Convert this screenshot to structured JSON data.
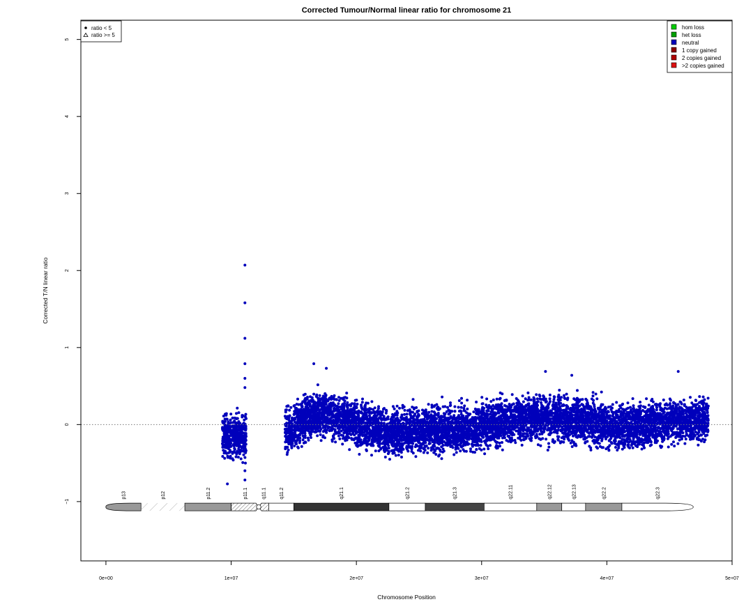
{
  "chart_data": {
    "type": "scatter",
    "title": "Corrected Tumour/Normal linear ratio for chromosome  21",
    "xlabel": "Chromosome Position",
    "ylabel": "Corrected T/N linear ratio",
    "xlim": [
      -2000000,
      50000000
    ],
    "ylim": [
      -1.77,
      5.25
    ],
    "x_ticks": [
      {
        "value": 0,
        "label": "0e+00"
      },
      {
        "value": 10000000,
        "label": "1e+07"
      },
      {
        "value": 20000000,
        "label": "2e+07"
      },
      {
        "value": 30000000,
        "label": "3e+07"
      },
      {
        "value": 40000000,
        "label": "4e+07"
      },
      {
        "value": 50000000,
        "label": "5e+07"
      }
    ],
    "y_ticks": [
      {
        "value": -1,
        "label": "−1"
      },
      {
        "value": 0,
        "label": "0"
      },
      {
        "value": 1,
        "label": "1"
      },
      {
        "value": 2,
        "label": "2"
      },
      {
        "value": 3,
        "label": "3"
      },
      {
        "value": 4,
        "label": "4"
      },
      {
        "value": 5,
        "label": "5"
      }
    ],
    "reference_line": {
      "y": 0,
      "style": "dotted"
    },
    "marker_legend": {
      "placement": "top-left",
      "items": [
        {
          "symbol": "dot",
          "label": "ratio < 5"
        },
        {
          "symbol": "triangle",
          "label": "ratio >= 5"
        }
      ]
    },
    "status_legend": {
      "placement": "top-right",
      "items": [
        {
          "label": "hom loss",
          "color": "#00cc00"
        },
        {
          "label": "het loss",
          "color": "#00a000"
        },
        {
          "label": "neutral",
          "color": "#0000bb"
        },
        {
          "label": "1 copy gained",
          "color": "#8b0000"
        },
        {
          "label": "2 copies gained",
          "color": "#b00000"
        },
        {
          "label": ">2 copies gained",
          "color": "#dd1111"
        }
      ]
    },
    "series": [
      {
        "name": "neutral",
        "color": "#0000bb",
        "clusters": [
          {
            "x_range": [
              9300000,
              10000000
            ],
            "center": -0.15,
            "spread": 0.2
          },
          {
            "x_range": [
              10100000,
              11200000
            ],
            "center": -0.15,
            "spread": 0.22
          },
          {
            "x_range": [
              14300000,
              14900000
            ],
            "center": -0.1,
            "spread": 0.22
          },
          {
            "x_range": [
              15000000,
              48100000
            ],
            "center": 0.0,
            "spread": 0.22
          }
        ],
        "band_profile": [
          {
            "x": 15000000,
            "center": 0.0
          },
          {
            "x": 17500000,
            "center": 0.15
          },
          {
            "x": 20000000,
            "center": 0.0
          },
          {
            "x": 23000000,
            "center": -0.1
          },
          {
            "x": 26000000,
            "center": -0.05
          },
          {
            "x": 29000000,
            "center": -0.05
          },
          {
            "x": 34000000,
            "center": 0.1
          },
          {
            "x": 38000000,
            "center": 0.05
          },
          {
            "x": 41500000,
            "center": -0.05
          },
          {
            "x": 45000000,
            "center": 0.05
          },
          {
            "x": 48000000,
            "center": 0.05
          }
        ],
        "notable_points": [
          {
            "x": 11100000,
            "y": 2.07
          },
          {
            "x": 11100000,
            "y": 1.58
          },
          {
            "x": 11100000,
            "y": 1.12
          },
          {
            "x": 11100000,
            "y": 0.79
          },
          {
            "x": 11100000,
            "y": 0.6
          },
          {
            "x": 11100000,
            "y": 0.48
          },
          {
            "x": 11100000,
            "y": -0.6
          },
          {
            "x": 11100000,
            "y": -0.72
          },
          {
            "x": 9700000,
            "y": -0.77
          },
          {
            "x": 16600000,
            "y": 0.79
          },
          {
            "x": 17600000,
            "y": 0.73
          },
          {
            "x": 45700000,
            "y": 0.69
          },
          {
            "x": 35100000,
            "y": 0.69
          },
          {
            "x": 37200000,
            "y": 0.64
          }
        ]
      }
    ],
    "ideogram": {
      "y": -1.07,
      "bands": [
        {
          "name": "p13",
          "start": 0,
          "end": 2800000,
          "stain": "gpos50"
        },
        {
          "name": "p12",
          "start": 2800000,
          "end": 6300000,
          "stain": "stalk"
        },
        {
          "name": "p11.2",
          "start": 6300000,
          "end": 10000000,
          "stain": "gpos50"
        },
        {
          "name": "p11.1",
          "start": 10000000,
          "end": 12200000,
          "stain": "acen"
        },
        {
          "name": "q11.1",
          "start": 12200000,
          "end": 13000000,
          "stain": "acen"
        },
        {
          "name": "q11.2",
          "start": 13000000,
          "end": 15000000,
          "stain": "gneg"
        },
        {
          "name": "q21.1",
          "start": 15000000,
          "end": 22600000,
          "stain": "gpos100"
        },
        {
          "name": "q21.2",
          "start": 22600000,
          "end": 25500000,
          "stain": "gneg"
        },
        {
          "name": "q21.3",
          "start": 25500000,
          "end": 30200000,
          "stain": "gpos75"
        },
        {
          "name": "q22.11",
          "start": 30200000,
          "end": 34400000,
          "stain": "gneg"
        },
        {
          "name": "q22.12",
          "start": 34400000,
          "end": 36400000,
          "stain": "gpos50"
        },
        {
          "name": "q22.13",
          "start": 36400000,
          "end": 38300000,
          "stain": "gneg"
        },
        {
          "name": "q22.2",
          "start": 38300000,
          "end": 41200000,
          "stain": "gpos50"
        },
        {
          "name": "q22.3",
          "start": 41200000,
          "end": 46900000,
          "stain": "gneg"
        }
      ]
    }
  }
}
